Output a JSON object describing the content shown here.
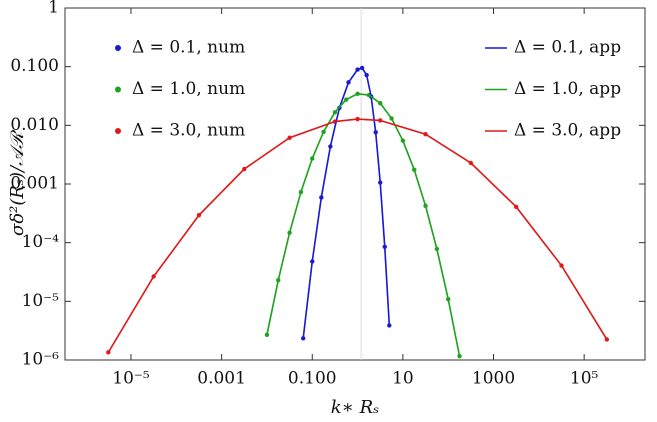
{
  "chart_data": {
    "type": "line",
    "x_label": "k∗ Rₛ",
    "y_label": "σδ²(Rₛ)/𝒜ℛ",
    "log_x": true,
    "log_y": true,
    "xlim": [
      3.5e-07,
      2200000.0
    ],
    "ylim": [
      1e-06,
      1
    ],
    "xticks": [
      {
        "value": 1e-05,
        "label": "10⁻⁵"
      },
      {
        "value": 0.001,
        "label": "0.001"
      },
      {
        "value": 0.1,
        "label": "0.100"
      },
      10,
      1000,
      {
        "value": 100000,
        "label": "10⁵"
      }
    ],
    "yticks": [
      {
        "value": 1e-06,
        "label": "10⁻⁶"
      },
      {
        "value": 1e-05,
        "label": "10⁻⁵"
      },
      {
        "value": 0.0001,
        "label": "10⁻⁴"
      },
      {
        "value": 0.001,
        "label": "0.001"
      },
      {
        "value": 0.01,
        "label": "0.010"
      },
      {
        "value": 0.1,
        "label": "0.100"
      },
      1
    ],
    "vline": 1.2,
    "vline_color": "#d8d8d8",
    "series": [
      {
        "name": "Δ = 0.1, num",
        "color": "#1a1ad6",
        "marker": true,
        "x": [
          0.0631,
          0.1,
          0.1585,
          0.2512,
          0.3981,
          0.631,
          1,
          1.259,
          1.585,
          1.995,
          2.512,
          3.162,
          3.981,
          5.012
        ],
        "values": [
          2.34e-06,
          4.79e-05,
          0.000589,
          0.00437,
          0.0199,
          0.054,
          0.0893,
          0.095,
          0.0718,
          0.0309,
          0.00759,
          0.00106,
          8.5e-05,
          3.89e-06
        ]
      },
      {
        "name": "Δ = 1.0, num",
        "color": "#1fa31f",
        "marker": true,
        "x": [
          0.01,
          0.01778,
          0.03162,
          0.05623,
          0.1,
          0.1778,
          0.3162,
          0.5623,
          1,
          1.778,
          3.162,
          5.623,
          10,
          17.78,
          31.62,
          56.23,
          100,
          177.8
        ],
        "values": [
          2.69e-06,
          2.29e-05,
          0.000148,
          0.000728,
          0.00272,
          0.00774,
          0.0167,
          0.0275,
          0.0345,
          0.0328,
          0.0238,
          0.0131,
          0.00548,
          0.00175,
          0.000424,
          7.8e-05,
          1.09e-05,
          1.16e-06
        ]
      },
      {
        "name": "Δ = 3.0, num",
        "color": "#e01a1a",
        "marker": true,
        "x": [
          3.162e-06,
          3.162e-05,
          0.0003162,
          0.003162,
          0.03162,
          0.3162,
          1,
          3.162,
          31.62,
          316.2,
          3162,
          31620,
          316200
        ],
        "values": [
          1.35e-06,
          2.65e-05,
          0.000294,
          0.0018,
          0.00614,
          0.0116,
          0.0128,
          0.0121,
          0.00706,
          0.00228,
          0.000408,
          4.07e-05,
          2.24e-06
        ]
      },
      {
        "name": "Δ = 0.1, app",
        "color": "#1a1ad6",
        "marker": false,
        "x": [
          0.0631,
          0.1,
          0.1585,
          0.2512,
          0.3981,
          0.631,
          1,
          1.259,
          1.585,
          1.995,
          2.512,
          3.162,
          3.981,
          5.012
        ],
        "values": [
          2.34e-06,
          4.79e-05,
          0.000589,
          0.00437,
          0.0199,
          0.054,
          0.0893,
          0.095,
          0.0718,
          0.0309,
          0.00759,
          0.00106,
          8.5e-05,
          3.89e-06
        ]
      },
      {
        "name": "Δ = 1.0, app",
        "color": "#1fa31f",
        "marker": false,
        "x": [
          0.01,
          0.01778,
          0.03162,
          0.05623,
          0.1,
          0.1778,
          0.3162,
          0.5623,
          1,
          1.778,
          3.162,
          5.623,
          10,
          17.78,
          31.62,
          56.23,
          100,
          177.8
        ],
        "values": [
          2.69e-06,
          2.29e-05,
          0.000148,
          0.000728,
          0.00272,
          0.00774,
          0.0167,
          0.0275,
          0.0345,
          0.0328,
          0.0238,
          0.0131,
          0.00548,
          0.00175,
          0.000424,
          7.8e-05,
          1.09e-05,
          1.16e-06
        ]
      },
      {
        "name": "Δ = 3.0, app",
        "color": "#e01a1a",
        "marker": false,
        "x": [
          3.162e-06,
          3.162e-05,
          0.0003162,
          0.003162,
          0.03162,
          0.3162,
          1,
          3.162,
          31.62,
          316.2,
          3162,
          31620,
          316200
        ],
        "values": [
          1.35e-06,
          2.65e-05,
          0.000294,
          0.0018,
          0.00614,
          0.0116,
          0.0128,
          0.0121,
          0.00706,
          0.00228,
          0.000408,
          4.07e-05,
          2.24e-06
        ]
      }
    ]
  }
}
